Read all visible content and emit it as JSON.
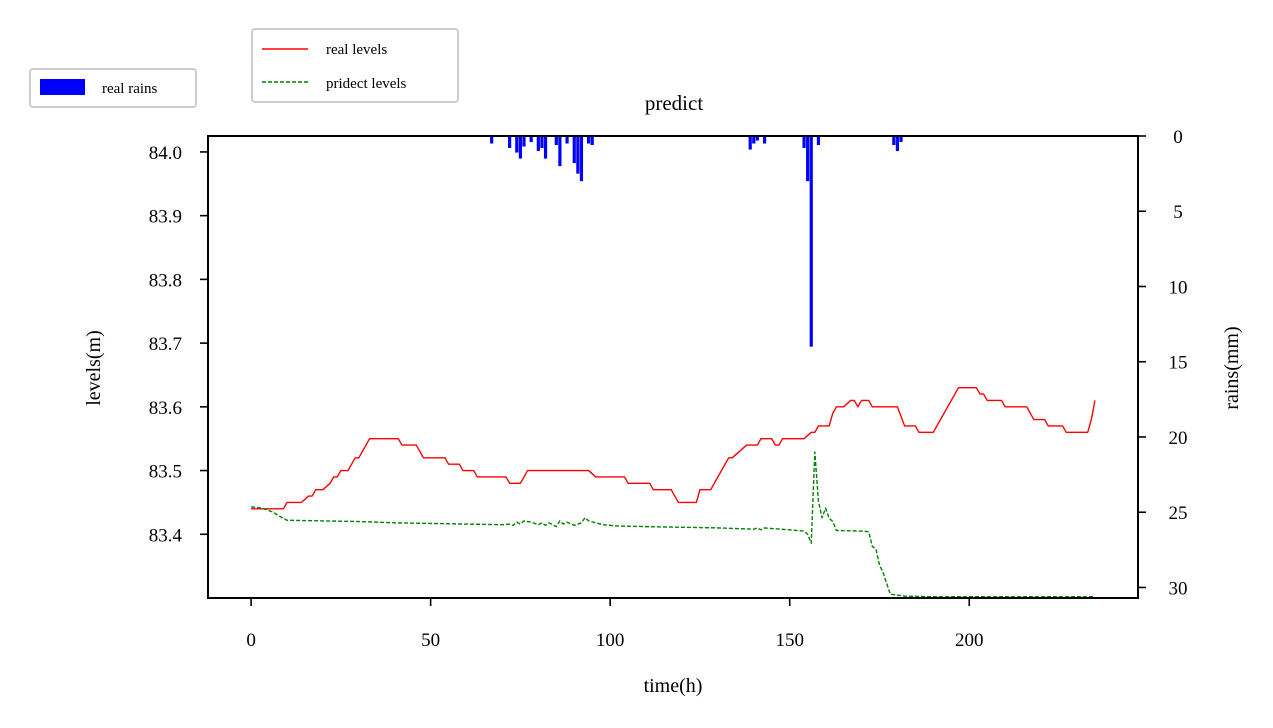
{
  "chart_data": {
    "type": "line",
    "title": "predict",
    "xlabel": "time(h)",
    "ylabel": "levels(m)",
    "y2label": "rains(mm)",
    "xlim": [
      -12,
      247
    ],
    "ylim": [
      83.3,
      84.025
    ],
    "y2lim": [
      0,
      30.7
    ],
    "y2_inverted": true,
    "grid": false,
    "x_ticks": [
      0,
      50,
      100,
      150,
      200
    ],
    "y_ticks": [
      83.4,
      83.5,
      83.6,
      83.7,
      83.8,
      83.9,
      84.0
    ],
    "y_tick_labels": [
      "83.4",
      "83.5",
      "83.6",
      "83.7",
      "83.8",
      "83.9",
      "84.0"
    ],
    "y2_ticks": [
      0,
      5,
      10,
      15,
      20,
      25,
      30
    ],
    "legends": [
      {
        "placement": "top-left-outside",
        "entries": [
          {
            "label": "real rains",
            "color": "#0000ff",
            "kind": "bar"
          }
        ]
      },
      {
        "placement": "top-center-left-outside",
        "entries": [
          {
            "label": "real levels",
            "color": "#ff0000",
            "kind": "solid"
          },
          {
            "label": "pridect levels",
            "color": "#008000",
            "kind": "dashed"
          }
        ]
      }
    ],
    "series": [
      {
        "name": "real levels",
        "axis": "left",
        "color": "#ff0000",
        "style": "solid",
        "points": [
          [
            0,
            83.44
          ],
          [
            9,
            83.44
          ],
          [
            10,
            83.45
          ],
          [
            14,
            83.45
          ],
          [
            16,
            83.46
          ],
          [
            17,
            83.46
          ],
          [
            18,
            83.47
          ],
          [
            20,
            83.47
          ],
          [
            22,
            83.48
          ],
          [
            23,
            83.49
          ],
          [
            24,
            83.49
          ],
          [
            25,
            83.5
          ],
          [
            27,
            83.5
          ],
          [
            28,
            83.51
          ],
          [
            29,
            83.52
          ],
          [
            30,
            83.52
          ],
          [
            32,
            83.54
          ],
          [
            33,
            83.55
          ],
          [
            41,
            83.55
          ],
          [
            42,
            83.54
          ],
          [
            46,
            83.54
          ],
          [
            47,
            83.53
          ],
          [
            48,
            83.52
          ],
          [
            54,
            83.52
          ],
          [
            55,
            83.51
          ],
          [
            58,
            83.51
          ],
          [
            59,
            83.5
          ],
          [
            62,
            83.5
          ],
          [
            63,
            83.49
          ],
          [
            71,
            83.49
          ],
          [
            72,
            83.48
          ],
          [
            75,
            83.48
          ],
          [
            76,
            83.49
          ],
          [
            77,
            83.5
          ],
          [
            94,
            83.5
          ],
          [
            96,
            83.49
          ],
          [
            104,
            83.49
          ],
          [
            105,
            83.48
          ],
          [
            111,
            83.48
          ],
          [
            112,
            83.47
          ],
          [
            117,
            83.47
          ],
          [
            119,
            83.45
          ],
          [
            124,
            83.45
          ],
          [
            125,
            83.47
          ],
          [
            128,
            83.47
          ],
          [
            130,
            83.49
          ],
          [
            131,
            83.5
          ],
          [
            132,
            83.51
          ],
          [
            133,
            83.52
          ],
          [
            134,
            83.52
          ],
          [
            136,
            83.53
          ],
          [
            138,
            83.54
          ],
          [
            141,
            83.54
          ],
          [
            142,
            83.55
          ],
          [
            145,
            83.55
          ],
          [
            146,
            83.54
          ],
          [
            147,
            83.54
          ],
          [
            148,
            83.55
          ],
          [
            154,
            83.55
          ],
          [
            156,
            83.56
          ],
          [
            157,
            83.56
          ],
          [
            158,
            83.57
          ],
          [
            161,
            83.57
          ],
          [
            162,
            83.59
          ],
          [
            163,
            83.6
          ],
          [
            165,
            83.6
          ],
          [
            167,
            83.61
          ],
          [
            168,
            83.61
          ],
          [
            169,
            83.6
          ],
          [
            170,
            83.61
          ],
          [
            172,
            83.61
          ],
          [
            173,
            83.6
          ],
          [
            180,
            83.6
          ],
          [
            182,
            83.57
          ],
          [
            185,
            83.57
          ],
          [
            186,
            83.56
          ],
          [
            190,
            83.56
          ],
          [
            194,
            83.6
          ],
          [
            196,
            83.62
          ],
          [
            197,
            83.63
          ],
          [
            202,
            83.63
          ],
          [
            203,
            83.62
          ],
          [
            204,
            83.62
          ],
          [
            205,
            83.61
          ],
          [
            209,
            83.61
          ],
          [
            210,
            83.6
          ],
          [
            216,
            83.6
          ],
          [
            218,
            83.58
          ],
          [
            221,
            83.58
          ],
          [
            222,
            83.57
          ],
          [
            226,
            83.57
          ],
          [
            227,
            83.56
          ],
          [
            233,
            83.56
          ],
          [
            234,
            83.58
          ],
          [
            235,
            83.61
          ]
        ]
      },
      {
        "name": "pridect levels",
        "axis": "left",
        "color": "#008000",
        "style": "dashed",
        "points": [
          [
            0,
            83.443
          ],
          [
            3,
            83.441
          ],
          [
            6,
            83.435
          ],
          [
            8,
            83.428
          ],
          [
            10,
            83.422
          ],
          [
            20,
            83.421
          ],
          [
            30,
            83.42
          ],
          [
            40,
            83.418
          ],
          [
            50,
            83.417
          ],
          [
            60,
            83.416
          ],
          [
            70,
            83.415
          ],
          [
            72,
            83.416
          ],
          [
            73,
            83.414
          ],
          [
            74,
            83.419
          ],
          [
            75,
            83.416
          ],
          [
            76,
            83.421
          ],
          [
            78,
            83.419
          ],
          [
            80,
            83.415
          ],
          [
            81,
            83.418
          ],
          [
            82,
            83.414
          ],
          [
            83,
            83.418
          ],
          [
            84,
            83.415
          ],
          [
            85,
            83.412
          ],
          [
            86,
            83.421
          ],
          [
            87,
            83.416
          ],
          [
            88,
            83.419
          ],
          [
            90,
            83.414
          ],
          [
            92,
            83.418
          ],
          [
            93,
            83.426
          ],
          [
            94,
            83.421
          ],
          [
            96,
            83.418
          ],
          [
            98,
            83.415
          ],
          [
            102,
            83.413
          ],
          [
            110,
            83.412
          ],
          [
            120,
            83.411
          ],
          [
            130,
            83.41
          ],
          [
            140,
            83.408
          ],
          [
            141,
            83.41
          ],
          [
            142,
            83.407
          ],
          [
            143,
            83.41
          ],
          [
            145,
            83.409
          ],
          [
            150,
            83.407
          ],
          [
            154,
            83.405
          ],
          [
            155,
            83.4
          ],
          [
            156,
            83.386
          ],
          [
            157,
            83.529
          ],
          [
            158,
            83.452
          ],
          [
            159,
            83.426
          ],
          [
            160,
            83.441
          ],
          [
            161,
            83.425
          ],
          [
            162,
            83.42
          ],
          [
            163,
            83.406
          ],
          [
            170,
            83.405
          ],
          [
            172,
            83.404
          ],
          [
            173,
            83.381
          ],
          [
            174,
            83.377
          ],
          [
            175,
            83.352
          ],
          [
            176,
            83.34
          ],
          [
            178,
            83.306
          ],
          [
            182,
            83.303
          ],
          [
            190,
            83.302
          ],
          [
            200,
            83.302
          ],
          [
            210,
            83.302
          ],
          [
            220,
            83.302
          ],
          [
            230,
            83.302
          ],
          [
            235,
            83.302
          ]
        ]
      },
      {
        "name": "real rains",
        "axis": "right",
        "type": "bar",
        "color": "#0000ff",
        "points": [
          [
            67,
            0.5
          ],
          [
            72,
            0.8
          ],
          [
            74,
            1.1
          ],
          [
            75,
            1.5
          ],
          [
            76,
            0.7
          ],
          [
            78,
            0.4
          ],
          [
            80,
            1.0
          ],
          [
            81,
            0.8
          ],
          [
            82,
            1.5
          ],
          [
            85,
            0.6
          ],
          [
            86,
            2.0
          ],
          [
            88,
            0.5
          ],
          [
            90,
            1.8
          ],
          [
            91,
            2.5
          ],
          [
            92,
            3.0
          ],
          [
            94,
            0.5
          ],
          [
            95,
            0.6
          ],
          [
            139,
            0.9
          ],
          [
            140,
            0.5
          ],
          [
            141,
            0.3
          ],
          [
            143,
            0.5
          ],
          [
            154,
            0.8
          ],
          [
            155,
            3.0
          ],
          [
            156,
            14.0
          ],
          [
            158,
            0.6
          ],
          [
            179,
            0.6
          ],
          [
            180,
            1.0
          ],
          [
            181,
            0.4
          ]
        ]
      }
    ]
  }
}
